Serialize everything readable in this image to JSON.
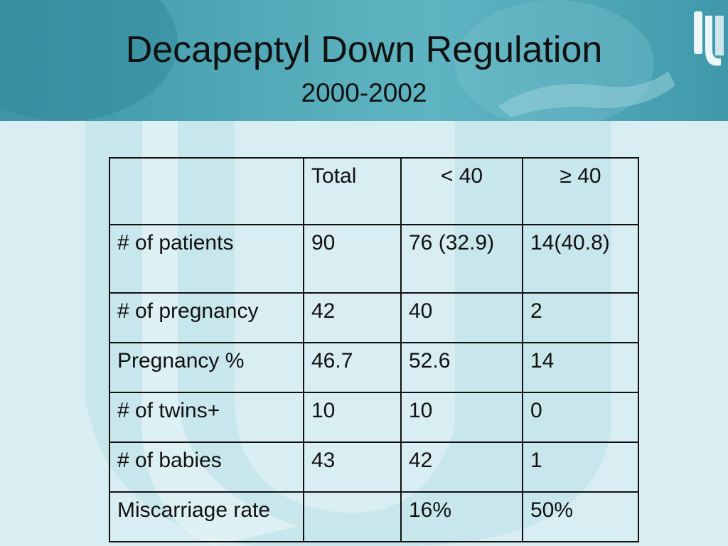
{
  "slide": {
    "title": "Decapeptyl Down Regulation",
    "subtitle": "2000-2002"
  },
  "table": {
    "headers": [
      "",
      "Total",
      "< 40",
      "≥ 40"
    ],
    "rows": [
      {
        "label": "# of patients",
        "total": "90",
        "under40": "76 (32.9)",
        "over40": "14(40.8)"
      },
      {
        "label": "# of pregnancy",
        "total": "42",
        "under40": "40",
        "over40": "2"
      },
      {
        "label": "Pregnancy %",
        "total": "46.7",
        "under40": "52.6",
        "over40": "14"
      },
      {
        "label": "# of twins+",
        "total": "10",
        "under40": "10",
        "over40": "0"
      },
      {
        "label": "# of babies",
        "total": "43",
        "under40": "42",
        "over40": "1"
      },
      {
        "label": "Miscarriage rate",
        "total": "",
        "under40": "16%",
        "over40": "50%"
      }
    ]
  },
  "colors": {
    "background": "#d8eef2",
    "header_band": "#4fa7b6",
    "watermark": "#c4e4ea"
  },
  "icons": {
    "logo": "university-logo-icon"
  }
}
